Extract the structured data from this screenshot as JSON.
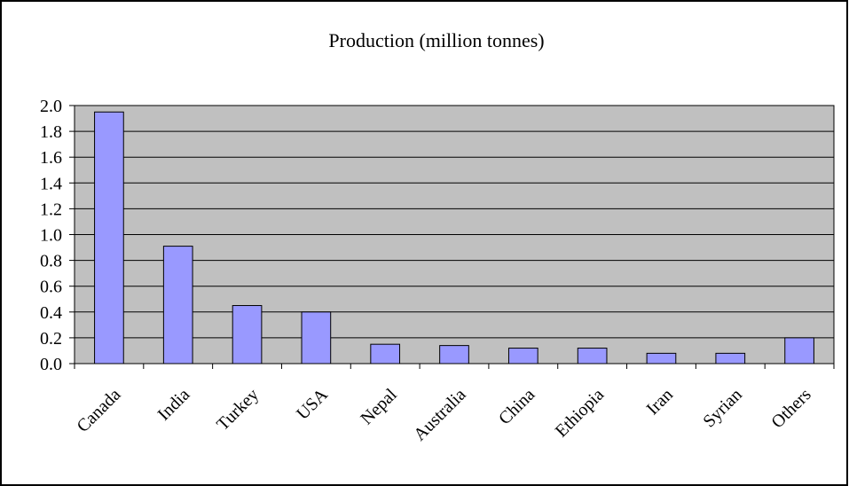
{
  "chart_data": {
    "type": "bar",
    "title": "Production (million tonnes)",
    "xlabel": "",
    "ylabel": "",
    "categories": [
      "Canada",
      "India",
      "Turkey",
      "USA",
      "Nepal",
      "Australia",
      "China",
      "Ethiopia",
      "Iran",
      "Syrian",
      "Others"
    ],
    "values": [
      1.95,
      0.91,
      0.45,
      0.4,
      0.15,
      0.14,
      0.12,
      0.12,
      0.08,
      0.08,
      0.2
    ],
    "ylim": [
      0,
      2.0
    ],
    "y_ticks": [
      "0.0",
      "0.2",
      "0.4",
      "0.6",
      "0.8",
      "1.0",
      "1.2",
      "1.4",
      "1.6",
      "1.8",
      "2.0"
    ],
    "grid": true,
    "legend": "none",
    "colors": {
      "plot_background": "#c0c0c0",
      "bar_fill": "#9999ff",
      "bar_stroke": "#000000",
      "gridline": "#000000",
      "border": "#000000"
    }
  }
}
